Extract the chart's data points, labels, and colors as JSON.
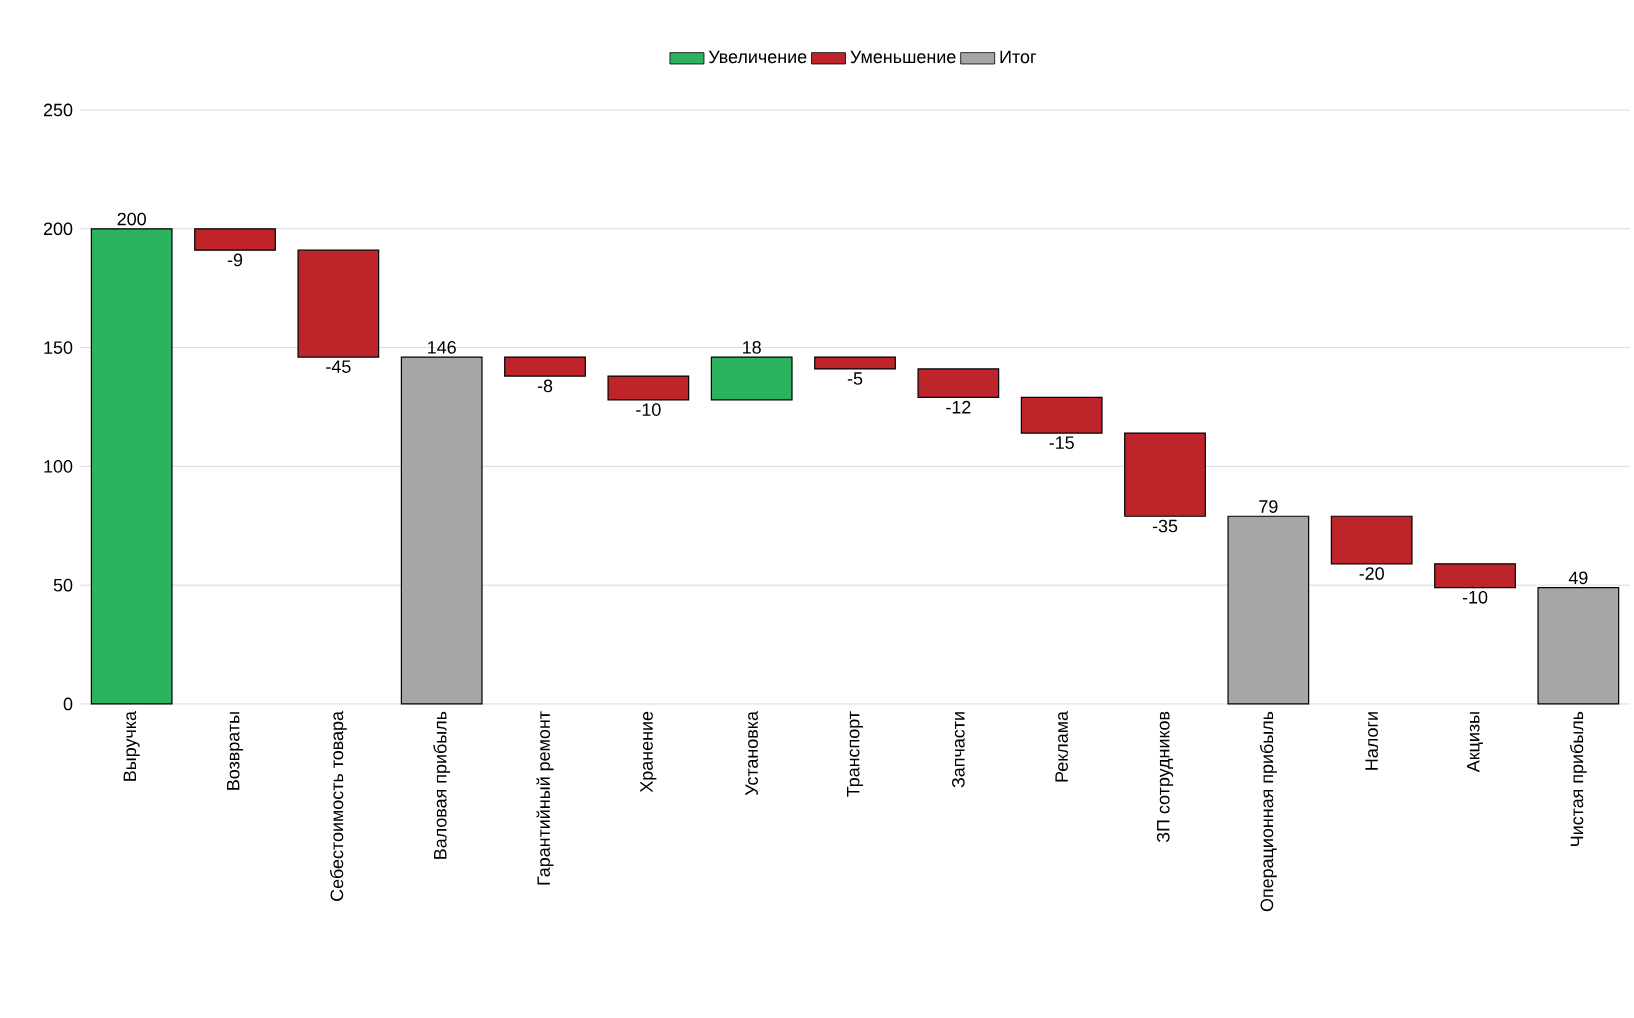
{
  "chart_data": {
    "type": "bar",
    "categories": [
      "Выручка",
      "Возвраты",
      "Себестоимость товара",
      "Валовая прибыль",
      "Гарантийный ремонт",
      "Хранение",
      "Установка",
      "Транспорт",
      "Запчасти",
      "Реклама",
      "ЗП сотрудников",
      "Операционная прибыль",
      "Налоги",
      "Акцизы",
      "Чистая прибыль"
    ],
    "series": [
      {
        "name": "Увеличение",
        "color": "#2bb35e",
        "values": [
          200,
          null,
          null,
          null,
          null,
          null,
          18,
          null,
          null,
          null,
          null,
          null,
          null,
          null,
          null
        ],
        "base": [
          0,
          null,
          null,
          null,
          null,
          null,
          128,
          null,
          null,
          null,
          null,
          null,
          null,
          null,
          null
        ]
      },
      {
        "name": "Уменьшение",
        "color": "#c0242b",
        "values": [
          null,
          -9,
          -45,
          null,
          -8,
          -10,
          null,
          -5,
          -12,
          -15,
          -35,
          null,
          -20,
          -10,
          null
        ],
        "base": [
          null,
          200,
          191,
          null,
          146,
          138,
          null,
          146,
          141,
          129,
          114,
          null,
          79,
          59,
          null
        ]
      },
      {
        "name": "Итог",
        "color": "#a6a6a6",
        "values": [
          null,
          null,
          null,
          146,
          null,
          null,
          null,
          null,
          null,
          null,
          null,
          79,
          null,
          null,
          49
        ],
        "base": [
          null,
          null,
          null,
          0,
          null,
          null,
          null,
          null,
          null,
          null,
          null,
          0,
          null,
          null,
          0
        ]
      }
    ],
    "ylim": [
      0,
      250
    ],
    "yticks": [
      0,
      50,
      100,
      150,
      200,
      250
    ],
    "grid": "y",
    "legend": "top",
    "data_labels": true
  }
}
